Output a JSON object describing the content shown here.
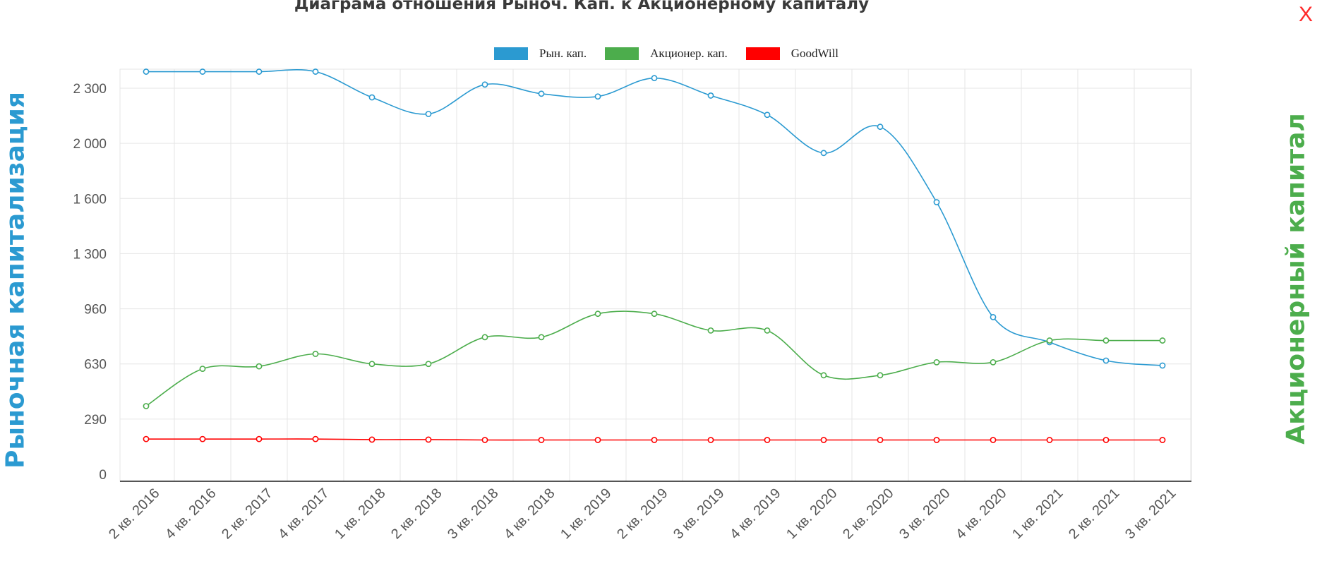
{
  "chart_data": {
    "type": "line",
    "title": "Диаграма отношения Рыноч. Кап. к Акционерному капиталу",
    "ylabel": "Рыночная капитализация",
    "y2label": "Акционерный капитал",
    "categories": [
      "2 кв. 2016",
      "4 кв. 2016",
      "2 кв. 2017",
      "4 кв. 2017",
      "1 кв. 2018",
      "2 кв. 2018",
      "3 кв. 2018",
      "4 кв. 2018",
      "1 кв. 2019",
      "2 кв. 2019",
      "3 кв. 2019",
      "4 кв. 2019",
      "1 кв. 2020",
      "2 кв. 2020",
      "3 кв. 2020",
      "4 кв. 2020",
      "1 кв. 2021",
      "2 кв. 2021",
      "3 кв. 2021"
    ],
    "yticks": [
      {
        "label": "0",
        "value": 0
      },
      {
        "label": "290",
        "value": 290
      },
      {
        "label": "630",
        "value": 630
      },
      {
        "label": "960",
        "value": 960
      },
      {
        "label": "1 300",
        "value": 1300
      },
      {
        "label": "1 600",
        "value": 1600
      },
      {
        "label": "2 000",
        "value": 2000
      },
      {
        "label": "2 300",
        "value": 2300
      }
    ],
    "ylim": [
      0,
      2390
    ],
    "grid": true,
    "legend_position": "top-center",
    "series": [
      {
        "name": "Рын. кап.",
        "color": "#2b9ad1",
        "values": [
          2390,
          2390,
          2390,
          2390,
          2250,
          2160,
          2320,
          2270,
          2255,
          2355,
          2260,
          2155,
          1930,
          2090,
          1580,
          910,
          760,
          650,
          620
        ]
      },
      {
        "name": "Акционер. кап.",
        "color": "#4cad4c",
        "values": [
          370,
          600,
          615,
          690,
          630,
          630,
          790,
          790,
          930,
          930,
          830,
          830,
          560,
          560,
          640,
          640,
          770,
          770,
          770
        ]
      },
      {
        "name": "GoodWill",
        "color": "#ff0000",
        "values": [
          185,
          185,
          185,
          185,
          182,
          182,
          180,
          180,
          180,
          180,
          180,
          180,
          180,
          180,
          180,
          180,
          180,
          180,
          180
        ]
      }
    ]
  },
  "close_label": "X"
}
